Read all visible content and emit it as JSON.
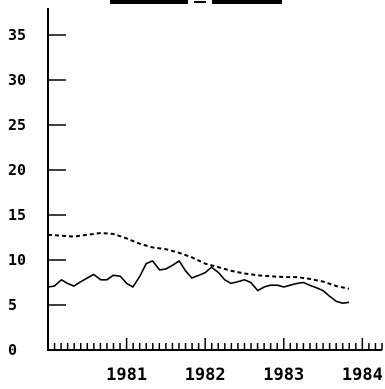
{
  "chart_data": {
    "type": "line",
    "title": "",
    "xlabel": "",
    "ylabel": "",
    "xlim": [
      1980.5,
      1984.75
    ],
    "ylim": [
      0,
      38
    ],
    "y_ticks": [
      {
        "value": 0,
        "label": "0"
      },
      {
        "value": 5,
        "label": "5"
      },
      {
        "value": 10,
        "label": "10"
      },
      {
        "value": 15,
        "label": "15"
      },
      {
        "value": 20,
        "label": "20"
      },
      {
        "value": 25,
        "label": "25"
      },
      {
        "value": 30,
        "label": "30"
      },
      {
        "value": 35,
        "label": "35"
      }
    ],
    "x_ticks": [
      {
        "value": 1981,
        "label": "1981"
      },
      {
        "value": 1982,
        "label": "1982"
      },
      {
        "value": 1983,
        "label": "1983"
      },
      {
        "value": 1984,
        "label": "1984"
      }
    ],
    "grid": false,
    "legend": "none",
    "series": [
      {
        "style": "solid",
        "color": "#000000",
        "x": [
          1980.5,
          1980.58,
          1980.67,
          1980.75,
          1980.83,
          1980.92,
          1981.0,
          1981.08,
          1981.17,
          1981.25,
          1981.33,
          1981.42,
          1981.5,
          1981.58,
          1981.67,
          1981.75,
          1981.83,
          1981.92,
          1982.0,
          1982.08,
          1982.17,
          1982.25,
          1982.33,
          1982.42,
          1982.5,
          1982.58,
          1982.67,
          1982.75,
          1982.83,
          1982.92,
          1983.0,
          1983.08,
          1983.17,
          1983.25,
          1983.33,
          1983.42,
          1983.5,
          1983.58,
          1983.67,
          1983.75,
          1983.83,
          1983.92,
          1984.0,
          1984.08,
          1984.17,
          1984.25,
          1984.33
        ],
        "y": [
          7.0,
          7.1,
          7.8,
          7.4,
          7.1,
          7.6,
          8.0,
          8.4,
          7.8,
          7.8,
          8.3,
          8.2,
          7.4,
          7.0,
          8.2,
          9.6,
          9.9,
          8.9,
          9.0,
          9.4,
          9.9,
          8.8,
          8.0,
          8.3,
          8.6,
          9.2,
          8.6,
          7.8,
          7.4,
          7.6,
          7.8,
          7.5,
          6.6,
          7.0,
          7.2,
          7.2,
          7.0,
          7.2,
          7.4,
          7.5,
          7.2,
          6.9,
          6.6,
          6.0,
          5.4,
          5.2,
          5.3
        ]
      },
      {
        "style": "dashed",
        "color": "#000000",
        "x": [
          1980.5,
          1980.67,
          1980.83,
          1981.0,
          1981.17,
          1981.33,
          1981.5,
          1981.67,
          1981.83,
          1982.0,
          1982.17,
          1982.33,
          1982.5,
          1982.67,
          1982.83,
          1983.0,
          1983.17,
          1983.33,
          1983.5,
          1983.67,
          1983.83,
          1984.0,
          1984.17,
          1984.33
        ],
        "y": [
          12.8,
          12.7,
          12.6,
          12.8,
          13.0,
          12.9,
          12.4,
          11.8,
          11.4,
          11.2,
          10.8,
          10.3,
          9.6,
          9.2,
          8.8,
          8.5,
          8.3,
          8.2,
          8.1,
          8.1,
          7.9,
          7.6,
          7.1,
          6.8
        ]
      }
    ]
  }
}
